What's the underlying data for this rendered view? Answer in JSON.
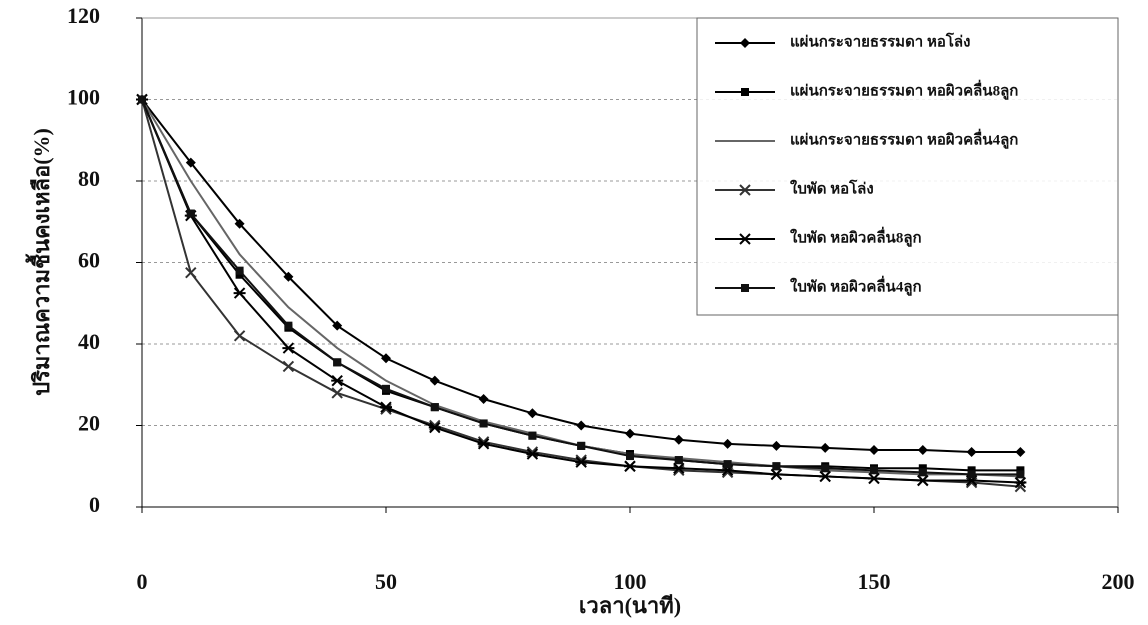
{
  "chart_data": {
    "type": "line",
    "y_label": "ปริมาณความชื้นคงเหลือ(%)",
    "x_label": "เวลา(นาที)",
    "x": [
      0,
      10,
      20,
      30,
      40,
      50,
      60,
      70,
      80,
      90,
      100,
      110,
      120,
      130,
      140,
      150,
      160,
      170,
      180
    ],
    "series": [
      {
        "name": "แผ่นกระจายธรรมดา หอโล่ง",
        "color": "#000000",
        "marker": "diamond",
        "values": [
          100,
          84.5,
          69.5,
          56.5,
          44.5,
          36.5,
          31,
          26.5,
          23,
          20,
          18,
          16.5,
          15.5,
          15,
          14.5,
          14,
          14,
          13.5,
          13.5
        ]
      },
      {
        "name": "แผ่นกระจายธรรมดา หอผิวคลื่น8ลูก",
        "color": "#000000",
        "marker": "square",
        "values": [
          100,
          72,
          57,
          44,
          35.5,
          28.5,
          24.5,
          20.5,
          17.5,
          15,
          13,
          11.5,
          10.5,
          10,
          10,
          9.5,
          9.5,
          9,
          9
        ]
      },
      {
        "name": "แผ่นกระจายธรรมดา หอผิวคลื่น4ลูก",
        "color": "#666666",
        "marker": "none",
        "values": [
          100,
          80,
          62,
          49,
          39,
          31,
          25,
          21,
          18,
          15,
          13,
          12,
          11,
          10,
          9,
          8.5,
          8,
          8,
          7.5
        ]
      },
      {
        "name": "ใบพัด หอโล่ง",
        "color": "#333333",
        "marker": "x",
        "values": [
          100,
          57.5,
          42,
          34.5,
          28,
          24,
          20,
          16,
          13.5,
          11.5,
          10,
          9,
          8.5,
          8,
          7.5,
          7,
          6.5,
          6,
          5
        ]
      },
      {
        "name": "ใบพัด หอผิวคลื่น8ลูก",
        "color": "#000000",
        "marker": "star",
        "values": [
          100,
          71.5,
          52.5,
          39,
          31,
          24.5,
          19.5,
          15.5,
          13,
          11,
          10,
          9.5,
          9,
          8,
          7.5,
          7,
          6.5,
          6.5,
          6
        ]
      },
      {
        "name": "ใบพัด หอผิวคลื่น4ลูก",
        "color": "#111111",
        "marker": "square",
        "values": [
          100,
          72,
          58,
          44.5,
          35.5,
          29,
          24.5,
          20.5,
          17.5,
          15,
          12.5,
          11.5,
          10.5,
          10,
          9.5,
          9,
          8.5,
          8,
          8
        ]
      }
    ],
    "xlim": [
      0,
      200
    ],
    "xticks": [
      0,
      50,
      100,
      150,
      200
    ],
    "ylim": [
      0,
      120
    ],
    "yticks": [
      0,
      20,
      40,
      60,
      80,
      100,
      120
    ],
    "grid": true,
    "legend": "upper right"
  }
}
